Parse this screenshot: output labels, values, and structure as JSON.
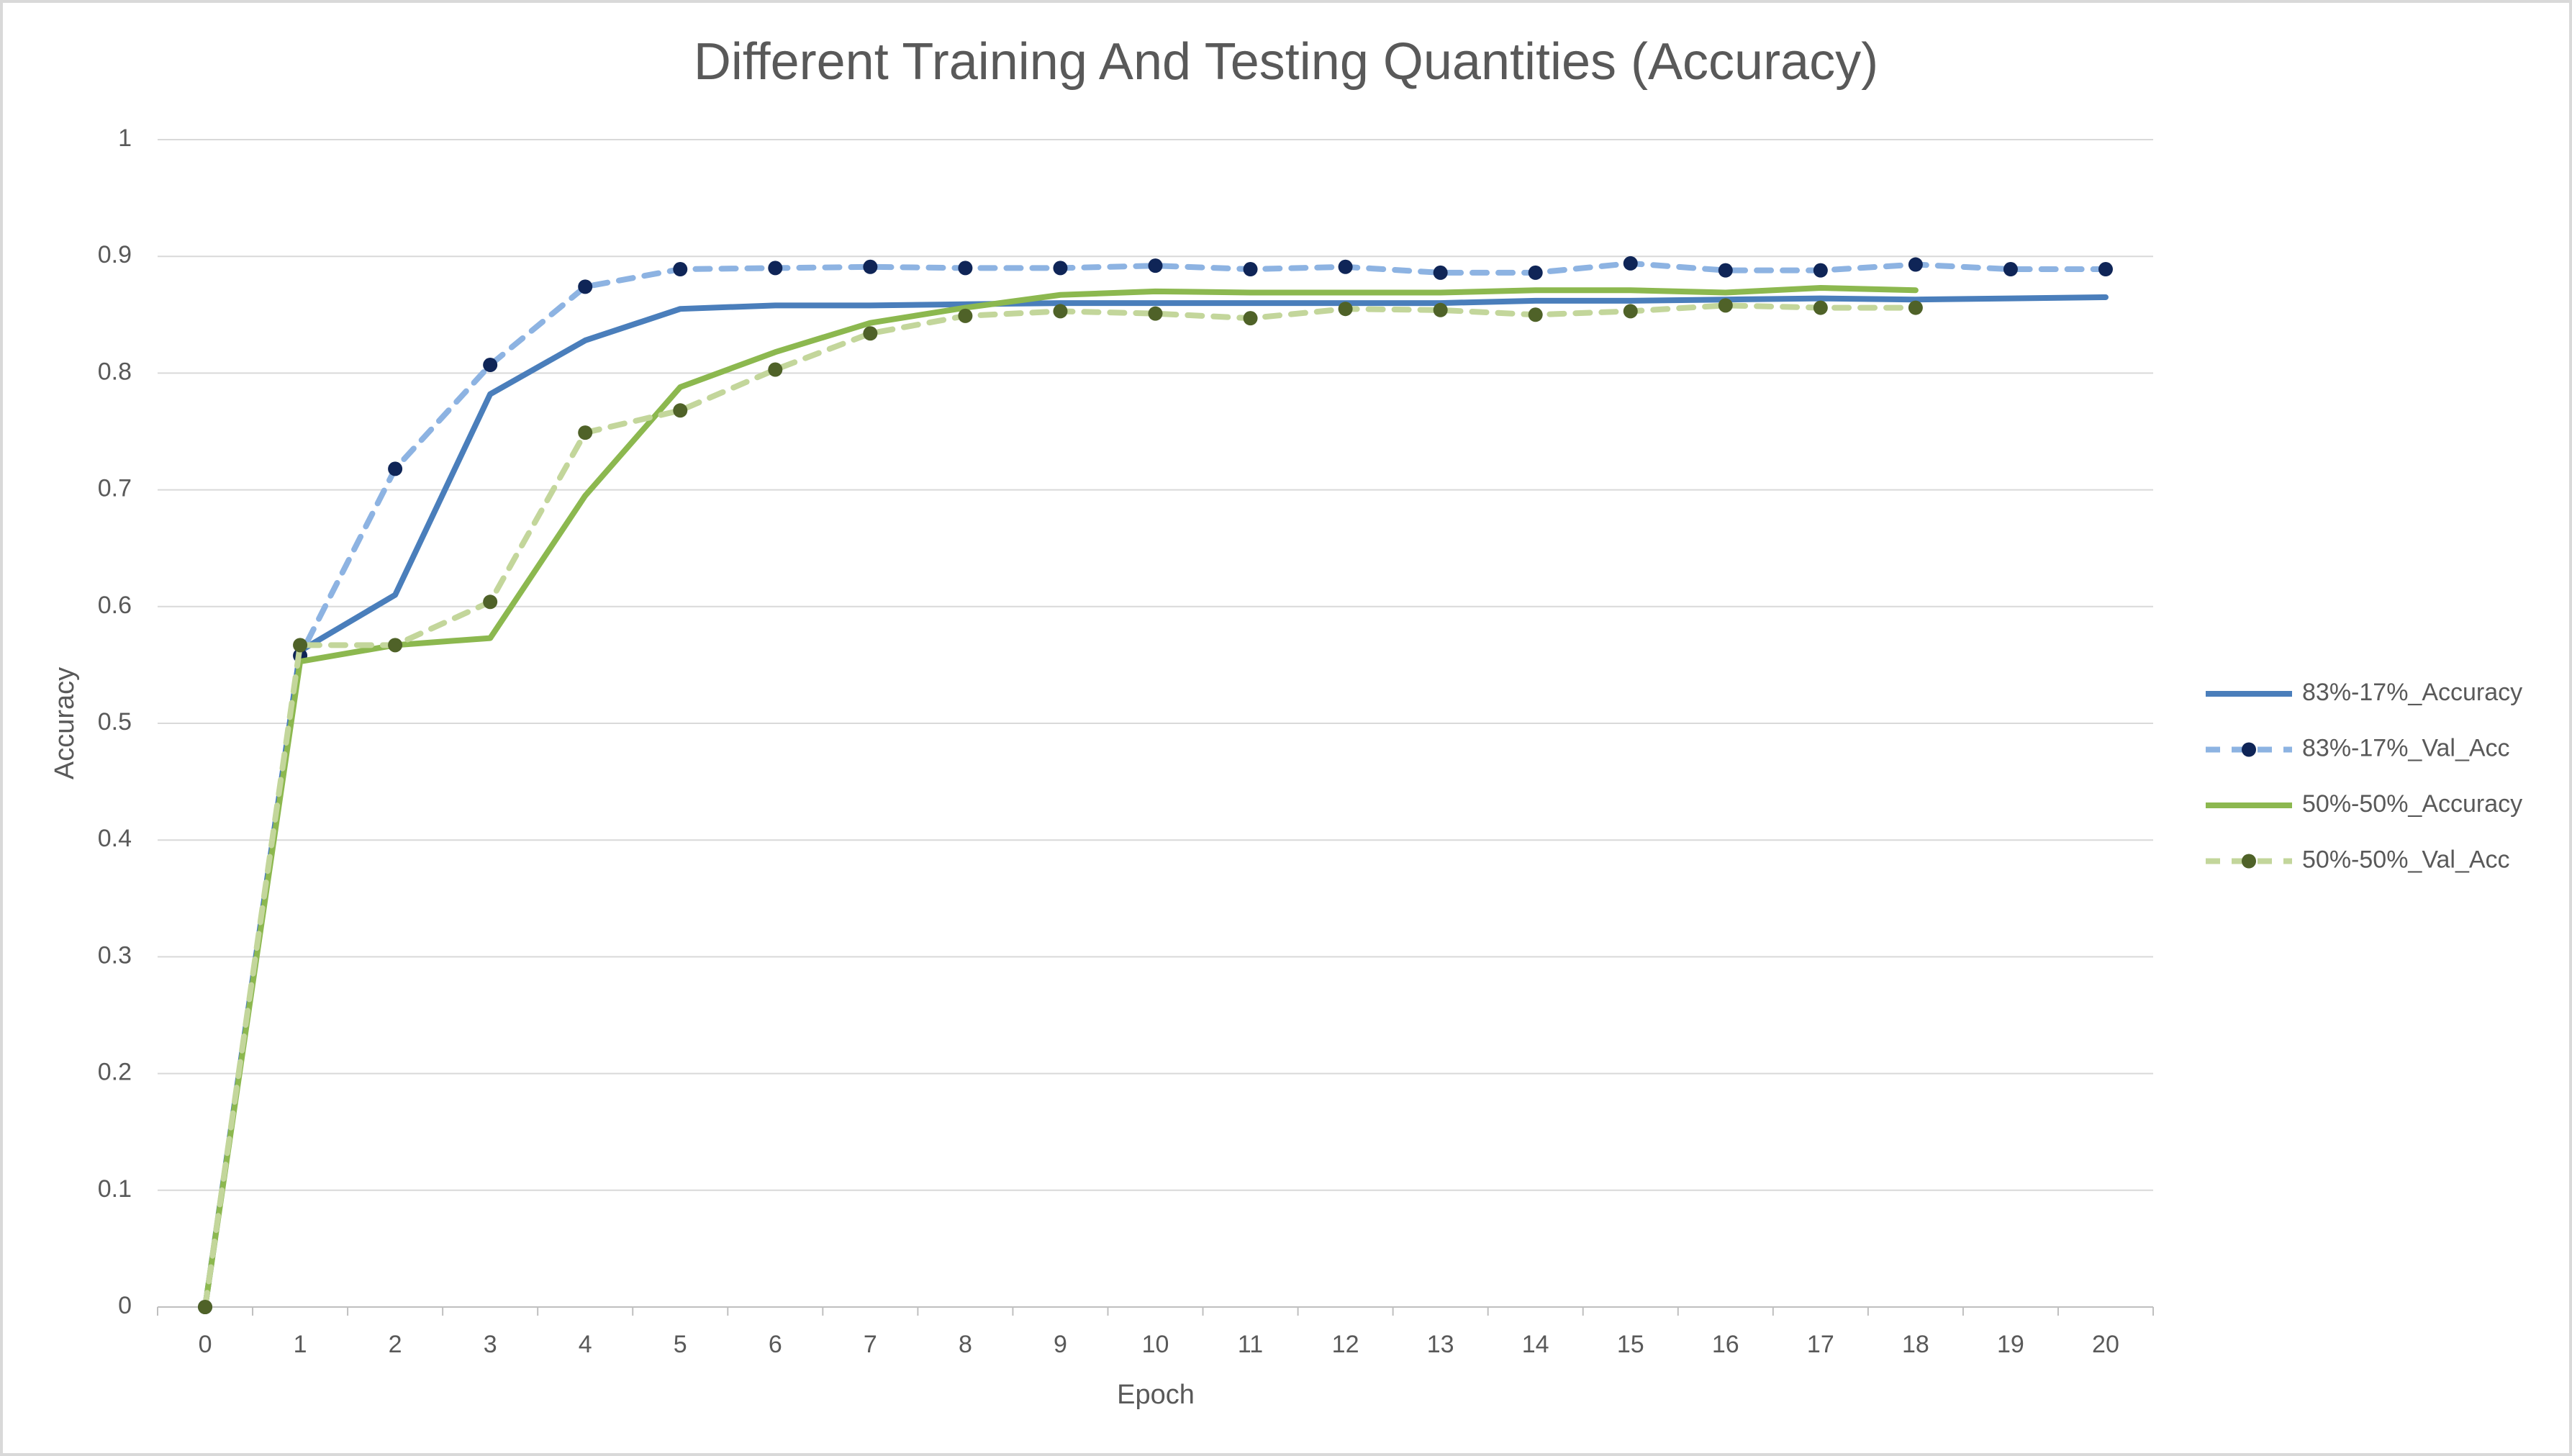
{
  "chart_data": {
    "type": "line",
    "title": "Different Training And Testing Quantities (Accuracy)",
    "x_label": "Epoch",
    "y_label": "Accuracy",
    "categories": [
      "0",
      "1",
      "2",
      "3",
      "4",
      "5",
      "6",
      "7",
      "8",
      "9",
      "10",
      "11",
      "12",
      "13",
      "14",
      "15",
      "16",
      "17",
      "18",
      "19",
      "20"
    ],
    "ylim": [
      0,
      1
    ],
    "yticks": [
      0,
      0.1,
      0.2,
      0.3,
      0.4,
      0.5,
      0.6,
      0.7,
      0.8,
      0.9,
      1
    ],
    "grid": true,
    "legend": "right",
    "series": [
      {
        "name": "83%-17%_Accuracy",
        "color": "#4a7ebb",
        "dashed": false,
        "marker": null,
        "values": [
          0,
          0.562,
          0.61,
          0.782,
          0.828,
          0.855,
          0.858,
          0.858,
          0.859,
          0.86,
          0.86,
          0.86,
          0.86,
          0.86,
          0.862,
          0.862,
          0.863,
          0.864,
          0.863,
          0.864,
          0.865
        ]
      },
      {
        "name": "83%-17%_Val_Acc",
        "color": "#8db3e2",
        "dashed": true,
        "marker": "#0f2557",
        "values": [
          0,
          0.558,
          0.718,
          0.807,
          0.874,
          0.889,
          0.89,
          0.891,
          0.89,
          0.89,
          0.892,
          0.889,
          0.891,
          0.886,
          0.886,
          0.894,
          0.888,
          0.888,
          0.893,
          0.889,
          0.889
        ]
      },
      {
        "name": "50%-50%_Accuracy",
        "color": "#8cb84f",
        "dashed": false,
        "marker": null,
        "values": [
          0,
          0.553,
          0.567,
          0.573,
          0.695,
          0.788,
          0.818,
          0.843,
          0.856,
          0.867,
          0.87,
          0.869,
          0.869,
          0.869,
          0.871,
          0.871,
          0.869,
          0.873,
          0.871,
          null,
          null
        ]
      },
      {
        "name": "50%-50%_Val_Acc",
        "color": "#c3d69b",
        "dashed": true,
        "marker": "#4f6228",
        "values": [
          0,
          0.567,
          0.567,
          0.604,
          0.749,
          0.768,
          0.803,
          0.834,
          0.849,
          0.853,
          0.851,
          0.847,
          0.855,
          0.854,
          0.85,
          0.853,
          0.858,
          0.856,
          0.856,
          null,
          null
        ]
      }
    ]
  }
}
